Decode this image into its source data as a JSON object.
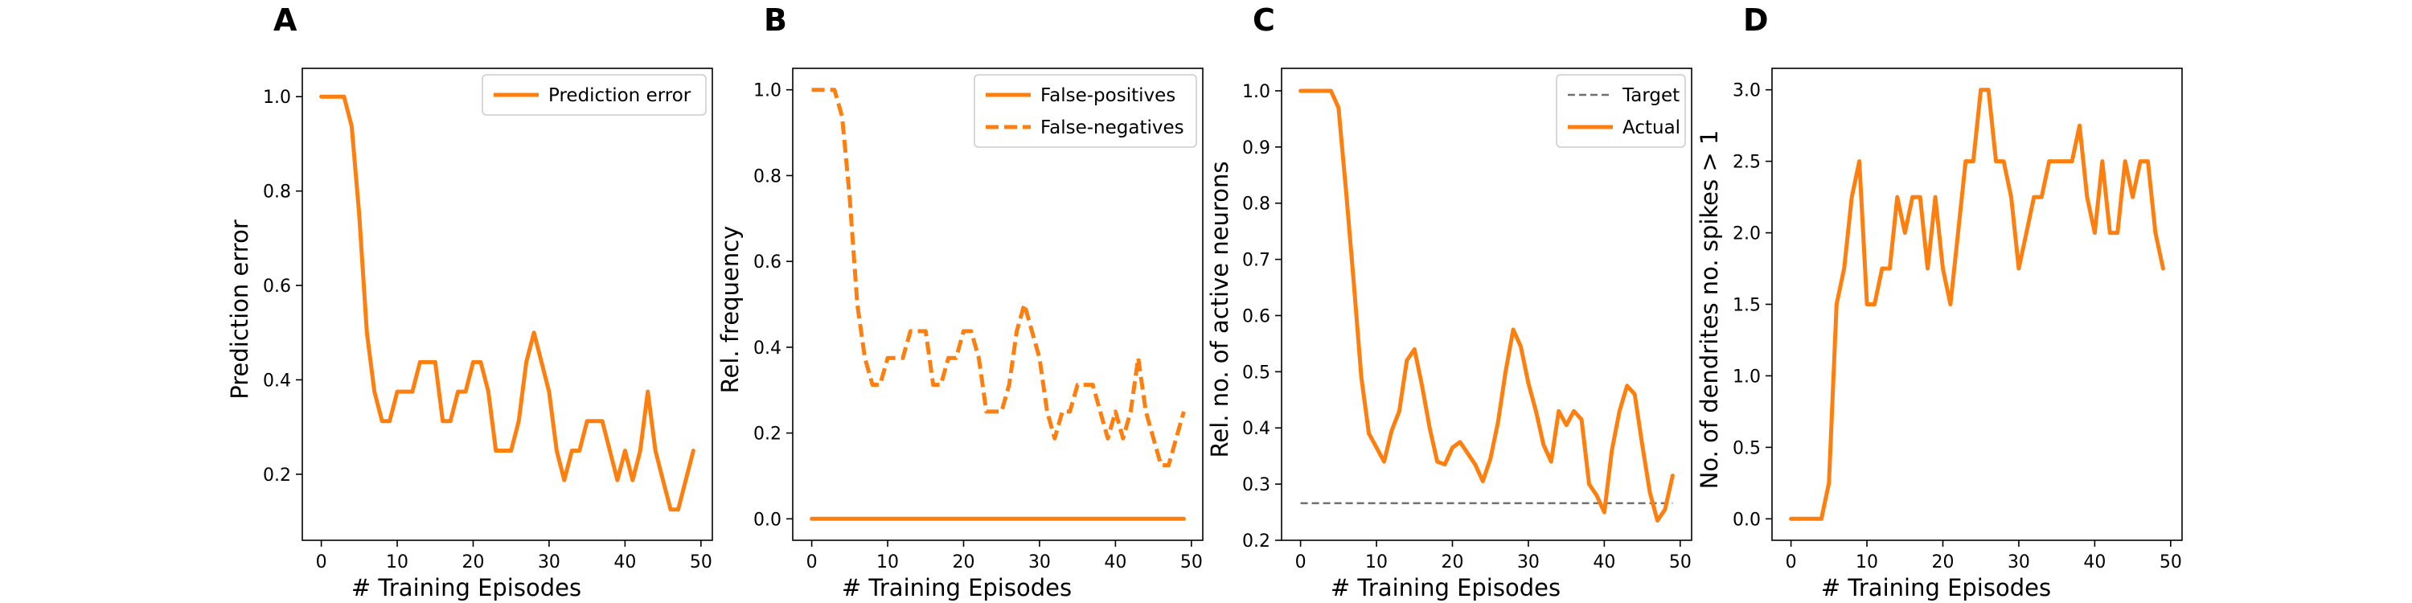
{
  "chart_data": [
    {
      "panel": "A",
      "type": "line",
      "xlabel": "# Training Episodes",
      "ylabel": "Prediction error",
      "xlim": [
        -2.5,
        51.5
      ],
      "ylim": [
        0.06,
        1.06
      ],
      "xticks": [
        0,
        10,
        20,
        30,
        40,
        50
      ],
      "yticks": [
        0.2,
        0.4,
        0.6,
        0.8,
        1.0
      ],
      "ytick_decimals": 1,
      "legend_position": "top-right",
      "series": [
        {
          "name": "Prediction error",
          "style": "solid",
          "color": "#ff7f0e",
          "x": [
            0,
            1,
            2,
            3,
            4,
            5,
            6,
            7,
            8,
            9,
            10,
            11,
            12,
            13,
            14,
            15,
            16,
            17,
            18,
            19,
            20,
            21,
            22,
            23,
            24,
            25,
            26,
            27,
            28,
            29,
            30,
            31,
            32,
            33,
            34,
            35,
            36,
            37,
            38,
            39,
            40,
            41,
            42,
            43,
            44,
            45,
            46,
            47,
            48,
            49
          ],
          "y": [
            1.0,
            1.0,
            1.0,
            1.0,
            0.9375,
            0.75,
            0.5,
            0.375,
            0.3125,
            0.3125,
            0.375,
            0.375,
            0.375,
            0.4375,
            0.4375,
            0.4375,
            0.3125,
            0.3125,
            0.375,
            0.375,
            0.4375,
            0.4375,
            0.375,
            0.25,
            0.25,
            0.25,
            0.3125,
            0.4375,
            0.5,
            0.4375,
            0.375,
            0.25,
            0.1875,
            0.25,
            0.25,
            0.3125,
            0.3125,
            0.3125,
            0.25,
            0.1875,
            0.25,
            0.1875,
            0.25,
            0.375,
            0.25,
            0.1875,
            0.125,
            0.125,
            0.1875,
            0.25
          ]
        }
      ]
    },
    {
      "panel": "B",
      "type": "line",
      "xlabel": "# Training Episodes",
      "ylabel": "Rel. frequency",
      "xlim": [
        -2.5,
        51.5
      ],
      "ylim": [
        -0.05,
        1.05
      ],
      "xticks": [
        0,
        10,
        20,
        30,
        40,
        50
      ],
      "yticks": [
        0.0,
        0.2,
        0.4,
        0.6,
        0.8,
        1.0
      ],
      "ytick_decimals": 1,
      "legend_position": "top-right",
      "series": [
        {
          "name": "False-positives",
          "style": "solid",
          "color": "#ff7f0e",
          "x": [
            0,
            1,
            2,
            3,
            4,
            5,
            6,
            7,
            8,
            9,
            10,
            11,
            12,
            13,
            14,
            15,
            16,
            17,
            18,
            19,
            20,
            21,
            22,
            23,
            24,
            25,
            26,
            27,
            28,
            29,
            30,
            31,
            32,
            33,
            34,
            35,
            36,
            37,
            38,
            39,
            40,
            41,
            42,
            43,
            44,
            45,
            46,
            47,
            48,
            49
          ],
          "y": [
            0,
            0,
            0,
            0,
            0,
            0,
            0,
            0,
            0,
            0,
            0,
            0,
            0,
            0,
            0,
            0,
            0,
            0,
            0,
            0,
            0,
            0,
            0,
            0,
            0,
            0,
            0,
            0,
            0,
            0,
            0,
            0,
            0,
            0,
            0,
            0,
            0,
            0,
            0,
            0,
            0,
            0,
            0,
            0,
            0,
            0,
            0,
            0,
            0,
            0
          ]
        },
        {
          "name": "False-negatives",
          "style": "dashed",
          "color": "#ff7f0e",
          "x": [
            0,
            1,
            2,
            3,
            4,
            5,
            6,
            7,
            8,
            9,
            10,
            11,
            12,
            13,
            14,
            15,
            16,
            17,
            18,
            19,
            20,
            21,
            22,
            23,
            24,
            25,
            26,
            27,
            28,
            29,
            30,
            31,
            32,
            33,
            34,
            35,
            36,
            37,
            38,
            39,
            40,
            41,
            42,
            43,
            44,
            45,
            46,
            47,
            48,
            49
          ],
          "y": [
            1.0,
            1.0,
            1.0,
            1.0,
            0.9375,
            0.75,
            0.5,
            0.375,
            0.3125,
            0.3125,
            0.375,
            0.375,
            0.375,
            0.4375,
            0.4375,
            0.4375,
            0.3125,
            0.3125,
            0.375,
            0.375,
            0.4375,
            0.4375,
            0.375,
            0.25,
            0.25,
            0.25,
            0.3125,
            0.4375,
            0.5,
            0.4375,
            0.375,
            0.25,
            0.1875,
            0.25,
            0.25,
            0.3125,
            0.3125,
            0.3125,
            0.25,
            0.1875,
            0.25,
            0.1875,
            0.25,
            0.375,
            0.25,
            0.1875,
            0.125,
            0.125,
            0.1875,
            0.25
          ]
        }
      ]
    },
    {
      "panel": "C",
      "type": "line",
      "xlabel": "# Training Episodes",
      "ylabel": "Rel. no. of active neurons",
      "xlim": [
        -2.5,
        51.5
      ],
      "ylim": [
        0.2,
        1.04
      ],
      "xticks": [
        0,
        10,
        20,
        30,
        40,
        50
      ],
      "yticks": [
        0.2,
        0.3,
        0.4,
        0.5,
        0.6,
        0.7,
        0.8,
        0.9,
        1.0
      ],
      "ytick_decimals": 1,
      "legend_position": "top-right",
      "series": [
        {
          "name": "Target",
          "style": "dashed-thin",
          "color": "#707070",
          "x": [
            0,
            49
          ],
          "y": [
            0.266,
            0.266
          ]
        },
        {
          "name": "Actual",
          "style": "solid",
          "color": "#ff7f0e",
          "x": [
            0,
            1,
            2,
            3,
            4,
            5,
            6,
            7,
            8,
            9,
            10,
            11,
            12,
            13,
            14,
            15,
            16,
            17,
            18,
            19,
            20,
            21,
            22,
            23,
            24,
            25,
            26,
            27,
            28,
            29,
            30,
            31,
            32,
            33,
            34,
            35,
            36,
            37,
            38,
            39,
            40,
            41,
            42,
            43,
            44,
            45,
            46,
            47,
            48,
            49
          ],
          "y": [
            1.0,
            1.0,
            1.0,
            1.0,
            1.0,
            0.97,
            0.82,
            0.66,
            0.49,
            0.39,
            0.365,
            0.34,
            0.395,
            0.43,
            0.52,
            0.54,
            0.475,
            0.4,
            0.34,
            0.335,
            0.365,
            0.375,
            0.355,
            0.335,
            0.305,
            0.345,
            0.41,
            0.5,
            0.575,
            0.545,
            0.48,
            0.43,
            0.37,
            0.34,
            0.43,
            0.405,
            0.43,
            0.415,
            0.3,
            0.28,
            0.25,
            0.36,
            0.43,
            0.475,
            0.46,
            0.37,
            0.285,
            0.235,
            0.255,
            0.315
          ]
        }
      ]
    },
    {
      "panel": "D",
      "type": "line",
      "xlabel": "# Training Episodes",
      "ylabel": "No. of dendrites no. spikes > 1",
      "xlim": [
        -2.5,
        51.5
      ],
      "ylim": [
        -0.15,
        3.15
      ],
      "xticks": [
        0,
        10,
        20,
        30,
        40,
        50
      ],
      "yticks": [
        0.0,
        0.5,
        1.0,
        1.5,
        2.0,
        2.5,
        3.0
      ],
      "ytick_decimals": 1,
      "legend_position": "none",
      "series": [
        {
          "name": "",
          "style": "solid",
          "color": "#ff7f0e",
          "x": [
            0,
            1,
            2,
            3,
            4,
            5,
            6,
            7,
            8,
            9,
            10,
            11,
            12,
            13,
            14,
            15,
            16,
            17,
            18,
            19,
            20,
            21,
            22,
            23,
            24,
            25,
            26,
            27,
            28,
            29,
            30,
            31,
            32,
            33,
            34,
            35,
            36,
            37,
            38,
            39,
            40,
            41,
            42,
            43,
            44,
            45,
            46,
            47,
            48,
            49
          ],
          "y": [
            0.0,
            0.0,
            0.0,
            0.0,
            0.0,
            0.25,
            1.5,
            1.75,
            2.25,
            2.5,
            1.5,
            1.5,
            1.75,
            1.75,
            2.25,
            2.0,
            2.25,
            2.25,
            1.75,
            2.25,
            1.75,
            1.5,
            2.0,
            2.5,
            2.5,
            3.0,
            3.0,
            2.5,
            2.5,
            2.25,
            1.75,
            2.0,
            2.25,
            2.25,
            2.5,
            2.5,
            2.5,
            2.5,
            2.75,
            2.25,
            2.0,
            2.5,
            2.0,
            2.0,
            2.5,
            2.25,
            2.5,
            2.5,
            2.0,
            1.75
          ]
        }
      ]
    }
  ]
}
